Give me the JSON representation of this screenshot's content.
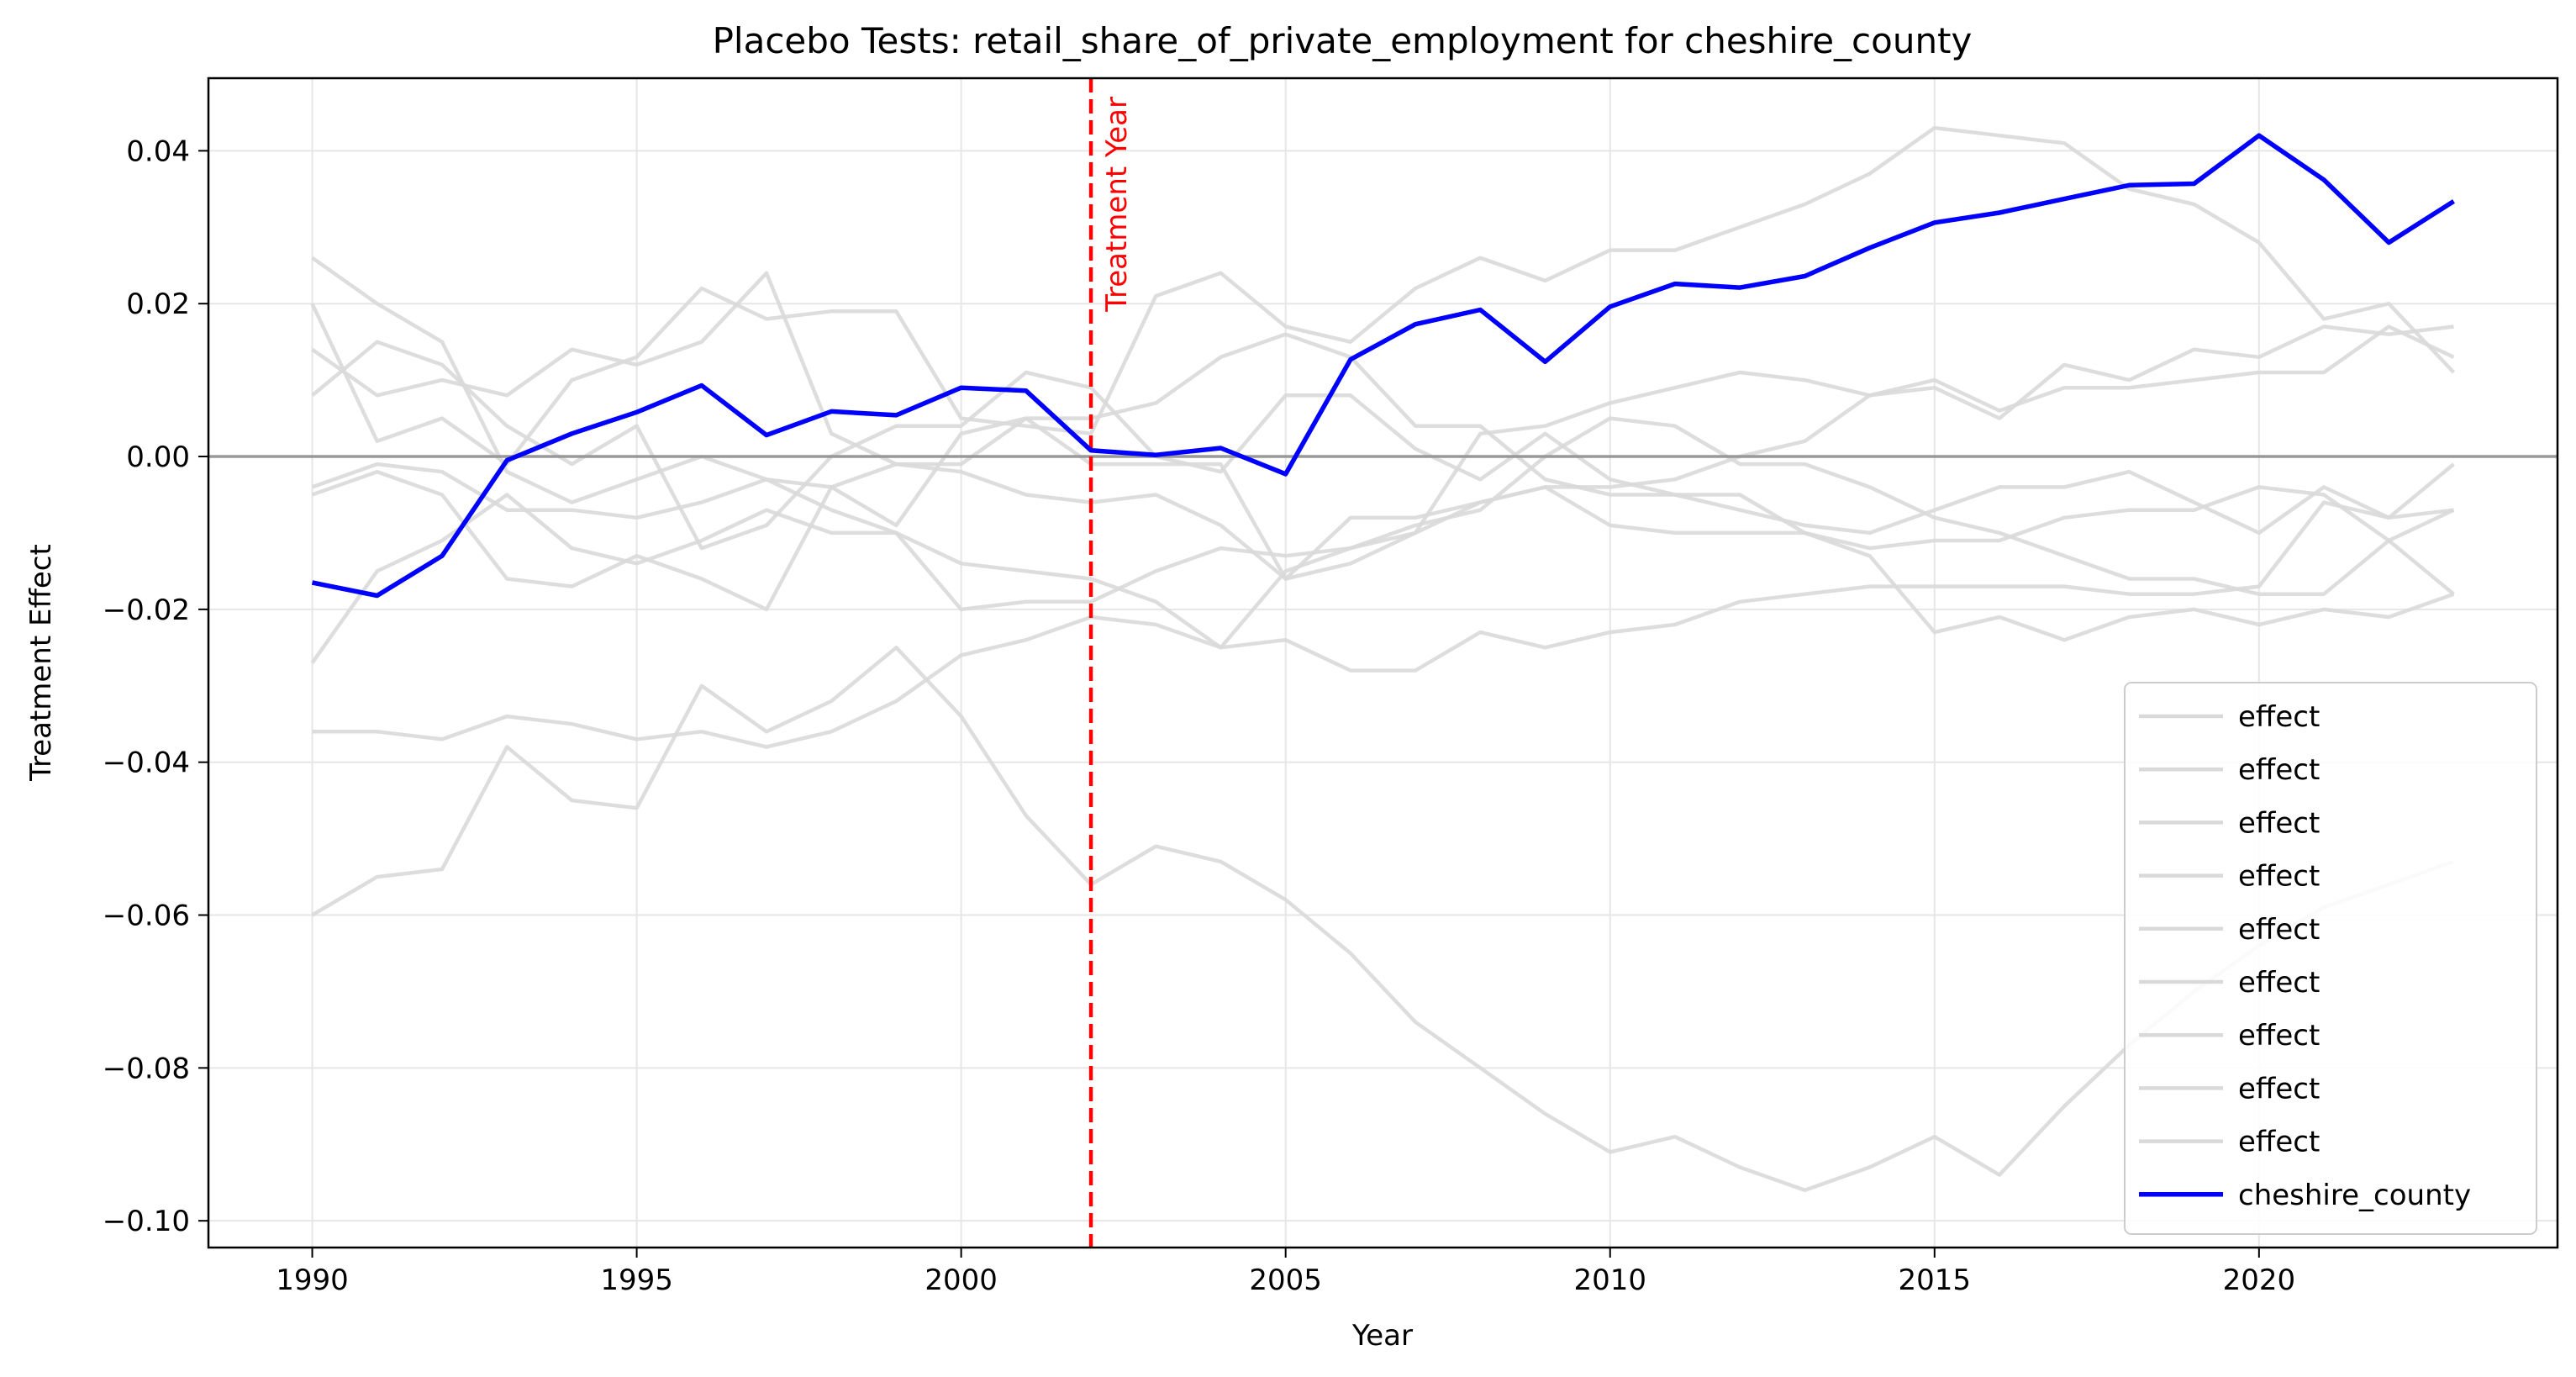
{
  "chart_data": {
    "type": "line",
    "title": "Placebo Tests: retail_share_of_private_employment for cheshire_county",
    "xlabel": "Year",
    "ylabel": "Treatment Effect",
    "xlim": [
      1988.4,
      2024.6
    ],
    "ylim": [
      -0.1035,
      0.0495
    ],
    "xticks": [
      1990,
      1995,
      2000,
      2005,
      2010,
      2015,
      2020
    ],
    "xtick_labels": [
      "1990",
      "1995",
      "2000",
      "2005",
      "2010",
      "2015",
      "2020"
    ],
    "yticks": [
      0.04,
      0.02,
      0.0,
      -0.02,
      -0.04,
      -0.06,
      -0.08,
      -0.1
    ],
    "ytick_labels": [
      "0.04",
      "0.02",
      "0.00",
      "−0.02",
      "−0.04",
      "−0.06",
      "−0.08",
      "−0.10"
    ],
    "grid": true,
    "legend_position": "bottom-right",
    "zero_line": 0.0,
    "treatment_year": 2002,
    "treatment_label": "Treatment Year",
    "colors": {
      "placebo": "#d9d9d9",
      "treated": "#0000ff",
      "treatment": "#ff0000",
      "zero": "#999999"
    },
    "x": [
      1990,
      1991,
      1992,
      1993,
      1994,
      1995,
      1996,
      1997,
      1998,
      1999,
      2000,
      2001,
      2002,
      2003,
      2004,
      2005,
      2006,
      2007,
      2008,
      2009,
      2010,
      2011,
      2012,
      2013,
      2014,
      2015,
      2016,
      2017,
      2018,
      2019,
      2020,
      2021,
      2022,
      2023
    ],
    "series": [
      {
        "name": "effect",
        "role": "placebo",
        "values": [
          0.026,
          0.02,
          0.015,
          -0.002,
          -0.006,
          -0.003,
          0.0,
          -0.003,
          -0.007,
          -0.01,
          -0.014,
          -0.015,
          -0.016,
          -0.019,
          -0.025,
          -0.015,
          -0.012,
          -0.01,
          -0.006,
          -0.004,
          -0.004,
          -0.003,
          0.0,
          0.002,
          0.008,
          0.009,
          0.005,
          0.012,
          0.01,
          0.014,
          0.013,
          0.017,
          0.016,
          0.017
        ]
      },
      {
        "name": "effect",
        "role": "placebo",
        "values": [
          0.02,
          0.002,
          0.005,
          -0.001,
          0.01,
          0.013,
          0.022,
          0.018,
          0.019,
          0.019,
          0.005,
          0.004,
          0.003,
          0.021,
          0.024,
          0.017,
          0.015,
          0.022,
          0.026,
          0.023,
          0.027,
          0.027,
          0.03,
          0.033,
          0.037,
          0.043,
          0.042,
          0.041,
          0.035,
          0.033,
          0.028,
          0.018,
          0.02,
          0.011
        ]
      },
      {
        "name": "effect",
        "role": "placebo",
        "values": [
          0.014,
          0.008,
          0.01,
          0.008,
          0.014,
          0.012,
          0.015,
          0.024,
          0.003,
          -0.001,
          -0.001,
          0.005,
          0.005,
          0.007,
          0.013,
          0.016,
          0.013,
          0.004,
          0.004,
          -0.003,
          -0.005,
          -0.005,
          -0.007,
          -0.009,
          -0.01,
          -0.007,
          -0.004,
          -0.004,
          -0.002,
          -0.006,
          -0.01,
          -0.004,
          -0.008,
          -0.007
        ]
      },
      {
        "name": "effect",
        "role": "placebo",
        "values": [
          0.008,
          0.015,
          0.012,
          0.004,
          -0.001,
          0.004,
          -0.012,
          -0.009,
          0.0,
          0.004,
          0.004,
          0.011,
          0.009,
          0.0,
          -0.002,
          0.008,
          0.008,
          0.001,
          -0.003,
          0.003,
          -0.003,
          -0.005,
          -0.005,
          -0.01,
          -0.012,
          -0.011,
          -0.011,
          -0.008,
          -0.007,
          -0.007,
          -0.004,
          -0.005,
          -0.011,
          -0.007
        ]
      },
      {
        "name": "effect",
        "role": "placebo",
        "values": [
          -0.004,
          -0.001,
          -0.002,
          -0.007,
          -0.007,
          -0.008,
          -0.006,
          -0.003,
          -0.004,
          -0.009,
          0.003,
          0.005,
          -0.001,
          -0.001,
          -0.001,
          -0.016,
          -0.014,
          -0.01,
          0.003,
          0.004,
          0.007,
          0.009,
          0.011,
          0.01,
          0.008,
          0.01,
          0.006,
          0.009,
          0.009,
          0.01,
          0.011,
          0.011,
          0.017,
          0.013
        ]
      },
      {
        "name": "effect",
        "role": "placebo",
        "values": [
          -0.005,
          -0.002,
          -0.005,
          -0.016,
          -0.017,
          -0.013,
          -0.016,
          -0.02,
          -0.004,
          -0.001,
          -0.002,
          -0.005,
          -0.006,
          -0.005,
          -0.009,
          -0.016,
          -0.008,
          -0.008,
          -0.006,
          -0.004,
          -0.009,
          -0.01,
          -0.01,
          -0.01,
          -0.013,
          -0.023,
          -0.021,
          -0.024,
          -0.021,
          -0.02,
          -0.022,
          -0.02,
          -0.021,
          -0.018
        ]
      },
      {
        "name": "effect",
        "role": "placebo",
        "values": [
          -0.027,
          -0.015,
          -0.011,
          -0.005,
          -0.012,
          -0.014,
          -0.011,
          -0.007,
          -0.01,
          -0.01,
          -0.02,
          -0.019,
          -0.019,
          -0.015,
          -0.012,
          -0.013,
          -0.012,
          -0.009,
          -0.007,
          0.0,
          0.005,
          0.004,
          -0.001,
          -0.001,
          -0.004,
          -0.008,
          -0.01,
          -0.013,
          -0.016,
          -0.016,
          -0.018,
          -0.018,
          -0.011,
          -0.018
        ]
      },
      {
        "name": "effect",
        "role": "placebo",
        "values": [
          -0.036,
          -0.036,
          -0.037,
          -0.034,
          -0.035,
          -0.037,
          -0.036,
          -0.038,
          -0.036,
          -0.032,
          -0.026,
          -0.024,
          -0.021,
          -0.022,
          -0.025,
          -0.024,
          -0.028,
          -0.028,
          -0.023,
          -0.025,
          -0.023,
          -0.022,
          -0.019,
          -0.018,
          -0.017,
          -0.017,
          -0.017,
          -0.017,
          -0.018,
          -0.018,
          -0.017,
          -0.006,
          -0.008,
          -0.001
        ]
      },
      {
        "name": "effect",
        "role": "placebo",
        "values": [
          -0.06,
          -0.055,
          -0.054,
          -0.038,
          -0.045,
          -0.046,
          -0.03,
          -0.036,
          -0.032,
          -0.025,
          -0.034,
          -0.047,
          -0.056,
          -0.051,
          -0.053,
          -0.058,
          -0.065,
          -0.074,
          -0.08,
          -0.086,
          -0.091,
          -0.089,
          -0.093,
          -0.096,
          -0.093,
          -0.089,
          -0.094,
          -0.085,
          -0.077,
          -0.07,
          -0.064,
          -0.059,
          -0.056,
          -0.053
        ]
      },
      {
        "name": "cheshire_county",
        "role": "treated",
        "values": [
          -0.0165,
          -0.0182,
          -0.013,
          -0.0005,
          0.003,
          0.0058,
          0.0093,
          0.0028,
          0.0059,
          0.0054,
          0.009,
          0.0086,
          0.0008,
          0.0002,
          0.0011,
          -0.0023,
          0.0127,
          0.0173,
          0.0192,
          0.0124,
          0.0196,
          0.0226,
          0.0221,
          0.0236,
          0.0273,
          0.0306,
          0.0319,
          0.0337,
          0.0355,
          0.0357,
          0.042,
          0.0362,
          0.028,
          0.0334
        ]
      }
    ]
  }
}
